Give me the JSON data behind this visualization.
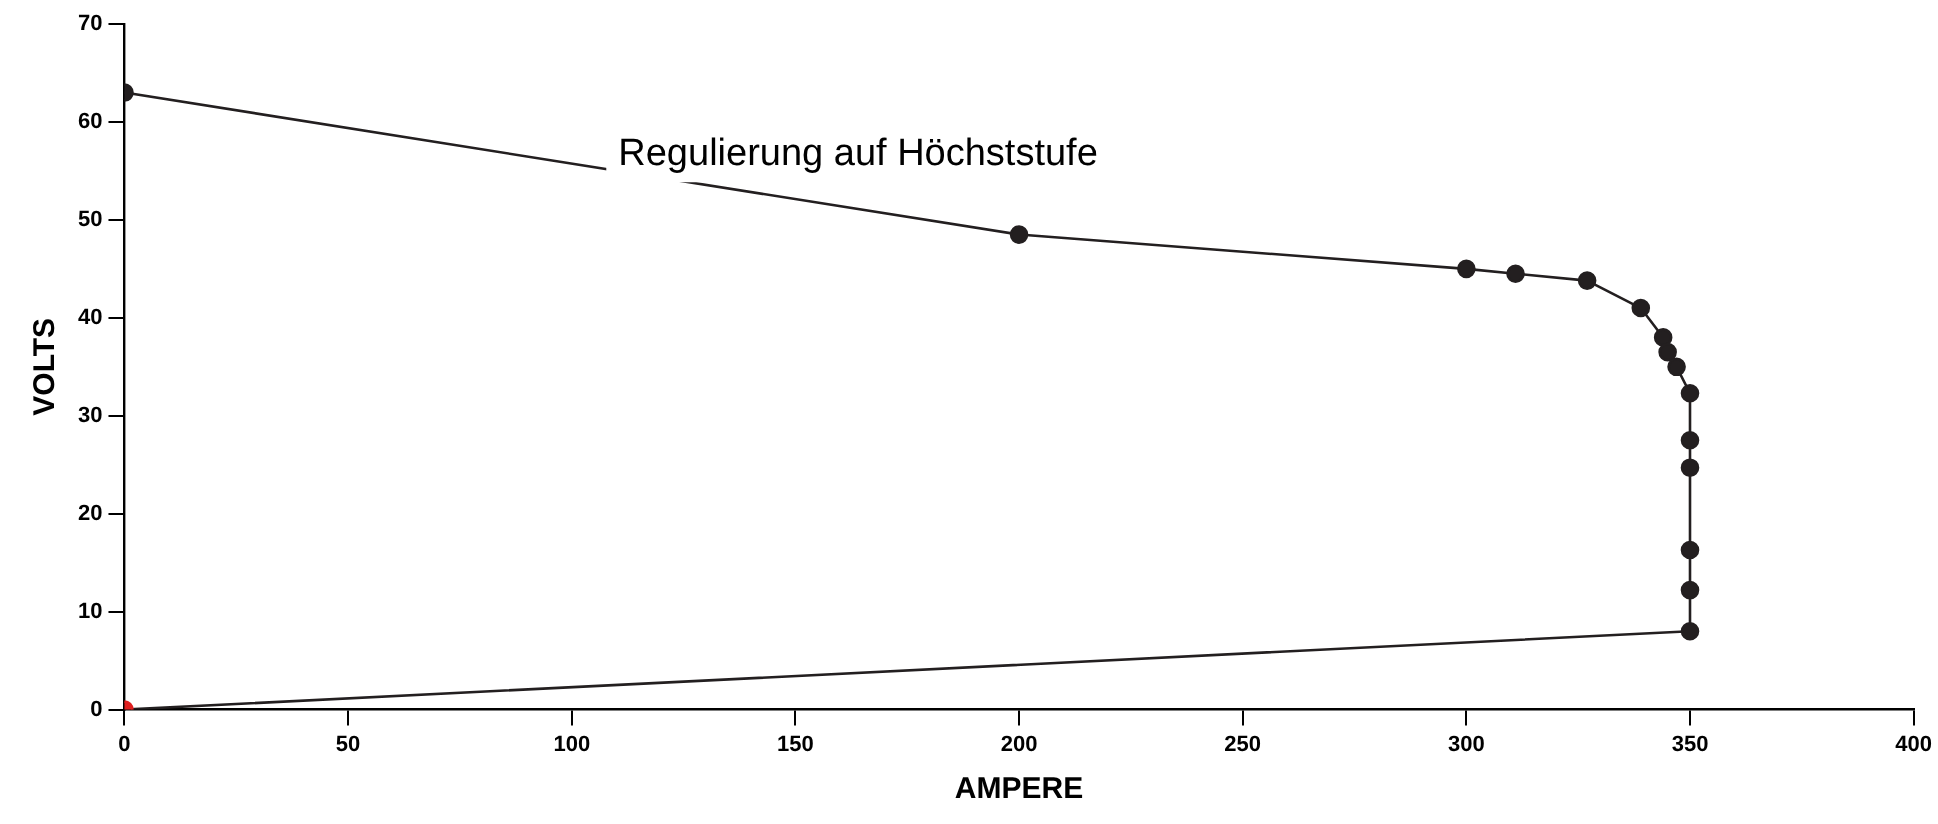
{
  "chart_data": {
    "type": "line",
    "xlabel": "AMPERE",
    "ylabel": "VOLTS",
    "annotations": [
      "Regulierung auf Höchststufe"
    ],
    "x": [
      0,
      200,
      300,
      311,
      327,
      339,
      344,
      345,
      347,
      350,
      350,
      350,
      350,
      350,
      350,
      0
    ],
    "series": [
      {
        "color": "#231f20",
        "colors": [
          "#231f20",
          "#231f20",
          "#231f20",
          "#231f20",
          "#231f20",
          "#231f20",
          "#231f20",
          "#231f20",
          "#231f20",
          "#231f20",
          "#231f20",
          "#231f20",
          "#231f20",
          "#231f20",
          "#231f20",
          "#e02020"
        ],
        "values": [
          63,
          48.5,
          45,
          44.5,
          43.8,
          41,
          38,
          36.5,
          35,
          32.3,
          27.5,
          24.7,
          16.3,
          12.2,
          8,
          0
        ]
      }
    ],
    "xlim": [
      0,
      400
    ],
    "xticks": [
      0,
      50,
      100,
      150,
      200,
      250,
      300,
      350,
      400
    ],
    "ylim": [
      0,
      70
    ],
    "yticks": [
      0,
      10,
      20,
      30,
      40,
      50,
      60,
      70
    ],
    "grid": false,
    "legend": false,
    "marker": "circle",
    "line_style": "solid"
  }
}
